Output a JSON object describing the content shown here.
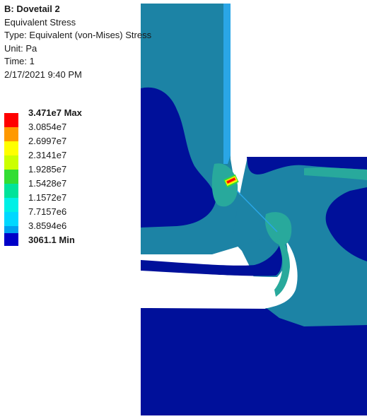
{
  "header": {
    "title": "B: Dovetail 2",
    "result": "Equivalent Stress",
    "type": "Type: Equivalent (von-Mises) Stress",
    "unit": "Unit: Pa",
    "time": "Time: 1",
    "date": "2/17/2021 9:40 PM"
  },
  "legend": {
    "items": [
      {
        "label": "3.471e7 Max",
        "color": "#ff0000",
        "bold": true
      },
      {
        "label": "3.0854e7",
        "color": "#ff9900",
        "bold": false
      },
      {
        "label": "2.6997e7",
        "color": "#ffff00",
        "bold": false
      },
      {
        "label": "2.3141e7",
        "color": "#ccff00",
        "bold": false
      },
      {
        "label": "1.9285e7",
        "color": "#33dd33",
        "bold": false
      },
      {
        "label": "1.5428e7",
        "color": "#00e39a",
        "bold": false
      },
      {
        "label": "1.1572e7",
        "color": "#00f0e6",
        "bold": false
      },
      {
        "label": "7.7157e6",
        "color": "#00d8ff",
        "bold": false
      },
      {
        "label": "3.8594e6",
        "color": "#00a0ef",
        "bold": false
      },
      {
        "label": "3061.1 Min",
        "color": "#0000c8",
        "bold": true
      }
    ]
  },
  "colors": {
    "low": "#00109a",
    "mid_low": "#1c83a5",
    "mid": "#28a99c",
    "mid_high": "#31c3a6",
    "tab_highlight": "#2aa6e6",
    "background": "#ffffff"
  }
}
